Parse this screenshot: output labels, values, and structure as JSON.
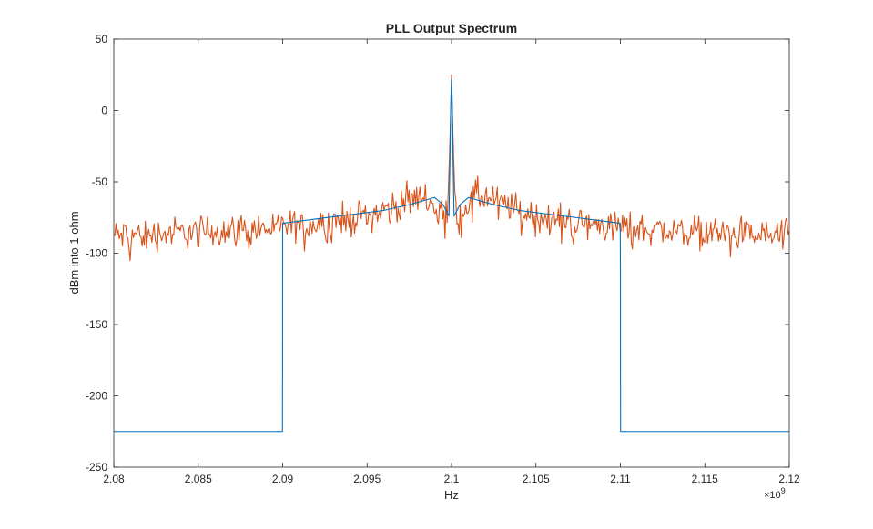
{
  "chart_data": {
    "type": "line",
    "title": "PLL Output Spectrum",
    "xlabel": "Hz",
    "ylabel": "dBm into 1 ohm",
    "x_exponent_label": "×10",
    "x_exponent_power": "9",
    "xlim": [
      2.08,
      2.12
    ],
    "ylim": [
      -250,
      50
    ],
    "x_scale_factor": 1000000000.0,
    "xticks": [
      2.08,
      2.085,
      2.09,
      2.095,
      2.1,
      2.105,
      2.11,
      2.115,
      2.12
    ],
    "xtick_labels": [
      "2.08",
      "2.085",
      "2.09",
      "2.095",
      "2.1",
      "2.105",
      "2.11",
      "2.115",
      "2.12"
    ],
    "yticks": [
      50,
      0,
      -50,
      -100,
      -150,
      -200,
      -250
    ],
    "ytick_labels": [
      "50",
      "0",
      "-50",
      "-100",
      "-150",
      "-200",
      "-250"
    ],
    "grid": false,
    "series": [
      {
        "color": "#0072BD",
        "x": [
          2.08,
          2.08999,
          2.09,
          2.09,
          2.092,
          2.094,
          2.096,
          2.0975,
          2.099,
          2.0995,
          2.09985,
          2.0999,
          2.09995,
          2.1,
          2.10005,
          2.1001,
          2.10015,
          2.1005,
          2.101,
          2.1025,
          2.104,
          2.106,
          2.108,
          2.10999,
          2.11,
          2.11001,
          2.12
        ],
        "y": [
          -225,
          -225,
          -110,
          -79,
          -76,
          -73,
          -70,
          -66,
          -61,
          -66,
          -74,
          -40,
          0,
          22,
          0,
          -40,
          -74,
          -66,
          -61,
          -66,
          -70,
          -73,
          -76,
          -79,
          -110,
          -225,
          -225
        ]
      },
      {
        "color": "#D95319",
        "noisy": true,
        "x": [
          2.08,
          2.085,
          2.09,
          2.095,
          2.0985,
          2.09975,
          2.0999,
          2.1,
          2.1001,
          2.10025,
          2.1015,
          2.105,
          2.11,
          2.115,
          2.12
        ],
        "y": [
          -88,
          -85,
          -82,
          -74,
          -59,
          -75,
          -25,
          25,
          -25,
          -75,
          -59,
          -74,
          -82,
          -85,
          -88
        ],
        "noise_amplitude_db": 7
      }
    ]
  }
}
